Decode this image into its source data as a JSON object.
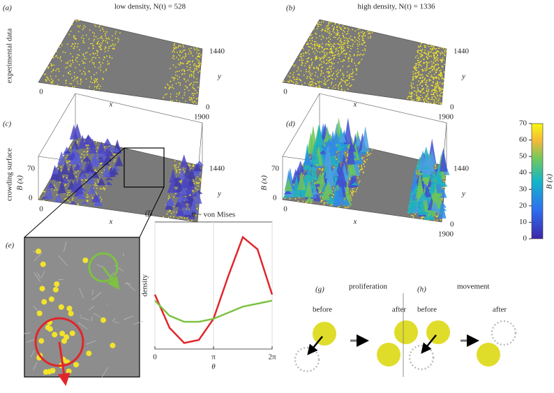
{
  "panels": {
    "a": {
      "label": "(a)",
      "title": "low density, N(t) = 528"
    },
    "b": {
      "label": "(b)",
      "title": "high density, N(t) = 1336"
    },
    "row_labels": [
      "experimental data",
      "crowding surface"
    ],
    "c": {
      "label": "(c)"
    },
    "d": {
      "label": "(d)"
    },
    "e": {
      "label": "(e)"
    },
    "g": {
      "label": "(g)",
      "title": "proliferation",
      "before": "before",
      "after": "after"
    },
    "h": {
      "label": "(h)",
      "title": "movement",
      "before": "before",
      "after": "after"
    }
  },
  "axes": {
    "x_label": "x",
    "y_label": "y",
    "z_label": "B (x)",
    "x_ticks": [
      0,
      1900
    ],
    "y_ticks": [
      0,
      1440
    ],
    "z_ticks": [
      0,
      70
    ]
  },
  "colorbar": {
    "label": "B (x)",
    "lim": [
      0,
      70
    ],
    "ticks": [
      0,
      10,
      20,
      30,
      40,
      50,
      60,
      70
    ]
  },
  "chart_data": {
    "type": "line",
    "label": "(f)",
    "title": "θ ~ von Mises",
    "ylabel": "density",
    "xlabel": "θ",
    "x": [
      0,
      0.785,
      1.571,
      2.356,
      3.142,
      3.927,
      4.712,
      5.498,
      6.283
    ],
    "series": [
      {
        "color": "#e0262b",
        "values": [
          0.18,
          0.07,
          0.02,
          0.03,
          0.1,
          0.24,
          0.37,
          0.33,
          0.18
        ]
      },
      {
        "color": "#7dc242",
        "values": [
          0.16,
          0.11,
          0.09,
          0.09,
          0.1,
          0.12,
          0.14,
          0.15,
          0.16
        ]
      }
    ],
    "xlim": [
      0,
      6.2832
    ],
    "ylim": [
      0,
      0.42
    ],
    "xticks": [
      0,
      {
        "value": 3.1416,
        "label": "π"
      },
      {
        "value": 6.2832,
        "label": "2π"
      }
    ],
    "grid": true
  }
}
